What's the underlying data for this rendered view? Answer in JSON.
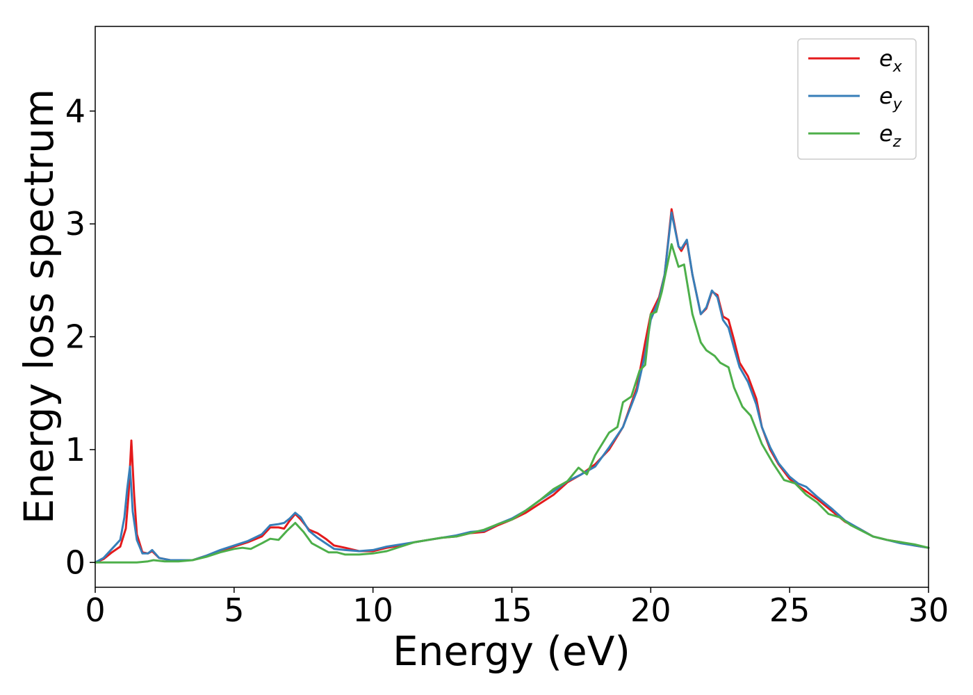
{
  "chart_data": {
    "type": "line",
    "title": "",
    "xlabel": "Energy (eV)",
    "ylabel": "Energy loss spectrum",
    "xlim": [
      0,
      30
    ],
    "ylim": [
      -0.22,
      4.75
    ],
    "xticks": [
      0,
      5,
      10,
      15,
      20,
      25,
      30
    ],
    "yticks": [
      0,
      1,
      2,
      3,
      4
    ],
    "grid": false,
    "legend_position": "top-right",
    "series": [
      {
        "name": "x",
        "legend_base": "e",
        "legend_sub": "x",
        "color": "#e41a1c",
        "points": [
          [
            0,
            0
          ],
          [
            0.3,
            0.03
          ],
          [
            0.6,
            0.09
          ],
          [
            0.9,
            0.14
          ],
          [
            1.1,
            0.3
          ],
          [
            1.2,
            0.6
          ],
          [
            1.3,
            1.08
          ],
          [
            1.4,
            0.6
          ],
          [
            1.5,
            0.25
          ],
          [
            1.7,
            0.09
          ],
          [
            1.9,
            0.08
          ],
          [
            2.05,
            0.1
          ],
          [
            2.3,
            0.04
          ],
          [
            2.7,
            0.02
          ],
          [
            3.0,
            0.02
          ],
          [
            3.5,
            0.02
          ],
          [
            4.0,
            0.06
          ],
          [
            4.5,
            0.1
          ],
          [
            5.0,
            0.14
          ],
          [
            5.5,
            0.18
          ],
          [
            6.0,
            0.23
          ],
          [
            6.3,
            0.31
          ],
          [
            6.6,
            0.31
          ],
          [
            6.8,
            0.3
          ],
          [
            7.0,
            0.37
          ],
          [
            7.2,
            0.43
          ],
          [
            7.4,
            0.38
          ],
          [
            7.7,
            0.29
          ],
          [
            8.0,
            0.26
          ],
          [
            8.3,
            0.21
          ],
          [
            8.6,
            0.15
          ],
          [
            9.0,
            0.13
          ],
          [
            9.5,
            0.1
          ],
          [
            10.0,
            0.1
          ],
          [
            10.5,
            0.13
          ],
          [
            11.0,
            0.15
          ],
          [
            11.5,
            0.18
          ],
          [
            12.0,
            0.2
          ],
          [
            12.5,
            0.22
          ],
          [
            13.0,
            0.23
          ],
          [
            13.5,
            0.26
          ],
          [
            14.0,
            0.27
          ],
          [
            14.5,
            0.33
          ],
          [
            15.0,
            0.38
          ],
          [
            15.5,
            0.44
          ],
          [
            16.0,
            0.52
          ],
          [
            16.5,
            0.6
          ],
          [
            17.0,
            0.71
          ],
          [
            17.5,
            0.78
          ],
          [
            18.0,
            0.87
          ],
          [
            18.5,
            1.0
          ],
          [
            19.0,
            1.2
          ],
          [
            19.5,
            1.55
          ],
          [
            19.8,
            1.95
          ],
          [
            20.0,
            2.2
          ],
          [
            20.3,
            2.35
          ],
          [
            20.5,
            2.55
          ],
          [
            20.75,
            3.13
          ],
          [
            21.0,
            2.8
          ],
          [
            21.1,
            2.76
          ],
          [
            21.3,
            2.85
          ],
          [
            21.5,
            2.55
          ],
          [
            21.8,
            2.2
          ],
          [
            22.0,
            2.25
          ],
          [
            22.2,
            2.4
          ],
          [
            22.4,
            2.37
          ],
          [
            22.6,
            2.18
          ],
          [
            22.8,
            2.15
          ],
          [
            23.0,
            1.97
          ],
          [
            23.2,
            1.77
          ],
          [
            23.5,
            1.65
          ],
          [
            23.8,
            1.45
          ],
          [
            24.0,
            1.2
          ],
          [
            24.3,
            1.0
          ],
          [
            24.6,
            0.87
          ],
          [
            25.0,
            0.74
          ],
          [
            25.3,
            0.68
          ],
          [
            25.6,
            0.63
          ],
          [
            26.0,
            0.56
          ],
          [
            26.5,
            0.46
          ],
          [
            27.0,
            0.36
          ],
          [
            27.5,
            0.3
          ],
          [
            28.0,
            0.23
          ],
          [
            28.5,
            0.2
          ],
          [
            29.0,
            0.18
          ],
          [
            29.5,
            0.15
          ],
          [
            30.0,
            0.13
          ]
        ]
      },
      {
        "name": "y",
        "legend_base": "e",
        "legend_sub": "y",
        "color": "#377eb8",
        "points": [
          [
            0,
            0
          ],
          [
            0.3,
            0.04
          ],
          [
            0.6,
            0.12
          ],
          [
            0.9,
            0.2
          ],
          [
            1.05,
            0.4
          ],
          [
            1.15,
            0.65
          ],
          [
            1.25,
            0.85
          ],
          [
            1.35,
            0.45
          ],
          [
            1.5,
            0.2
          ],
          [
            1.7,
            0.08
          ],
          [
            1.9,
            0.08
          ],
          [
            2.05,
            0.11
          ],
          [
            2.3,
            0.04
          ],
          [
            2.7,
            0.02
          ],
          [
            3.0,
            0.02
          ],
          [
            3.5,
            0.02
          ],
          [
            4.0,
            0.06
          ],
          [
            4.5,
            0.11
          ],
          [
            5.0,
            0.15
          ],
          [
            5.5,
            0.19
          ],
          [
            6.0,
            0.25
          ],
          [
            6.3,
            0.33
          ],
          [
            6.6,
            0.34
          ],
          [
            6.8,
            0.35
          ],
          [
            7.0,
            0.39
          ],
          [
            7.2,
            0.44
          ],
          [
            7.4,
            0.4
          ],
          [
            7.7,
            0.28
          ],
          [
            8.0,
            0.22
          ],
          [
            8.3,
            0.17
          ],
          [
            8.6,
            0.12
          ],
          [
            9.0,
            0.11
          ],
          [
            9.5,
            0.1
          ],
          [
            10.0,
            0.11
          ],
          [
            10.5,
            0.14
          ],
          [
            11.0,
            0.16
          ],
          [
            11.5,
            0.18
          ],
          [
            12.0,
            0.2
          ],
          [
            12.5,
            0.22
          ],
          [
            13.0,
            0.24
          ],
          [
            13.5,
            0.27
          ],
          [
            14.0,
            0.28
          ],
          [
            14.5,
            0.34
          ],
          [
            15.0,
            0.39
          ],
          [
            15.5,
            0.46
          ],
          [
            16.0,
            0.55
          ],
          [
            16.5,
            0.63
          ],
          [
            17.0,
            0.72
          ],
          [
            17.5,
            0.78
          ],
          [
            18.0,
            0.85
          ],
          [
            18.5,
            1.02
          ],
          [
            19.0,
            1.2
          ],
          [
            19.5,
            1.52
          ],
          [
            19.8,
            1.85
          ],
          [
            20.0,
            2.15
          ],
          [
            20.3,
            2.33
          ],
          [
            20.5,
            2.55
          ],
          [
            20.75,
            3.1
          ],
          [
            21.0,
            2.8
          ],
          [
            21.1,
            2.78
          ],
          [
            21.3,
            2.86
          ],
          [
            21.5,
            2.55
          ],
          [
            21.8,
            2.2
          ],
          [
            22.0,
            2.26
          ],
          [
            22.2,
            2.41
          ],
          [
            22.4,
            2.35
          ],
          [
            22.6,
            2.15
          ],
          [
            22.8,
            2.08
          ],
          [
            23.0,
            1.9
          ],
          [
            23.2,
            1.73
          ],
          [
            23.5,
            1.6
          ],
          [
            23.8,
            1.4
          ],
          [
            24.0,
            1.2
          ],
          [
            24.3,
            1.02
          ],
          [
            24.6,
            0.88
          ],
          [
            25.0,
            0.76
          ],
          [
            25.3,
            0.7
          ],
          [
            25.6,
            0.67
          ],
          [
            26.0,
            0.58
          ],
          [
            26.5,
            0.48
          ],
          [
            27.0,
            0.37
          ],
          [
            27.5,
            0.3
          ],
          [
            28.0,
            0.23
          ],
          [
            28.5,
            0.2
          ],
          [
            29.0,
            0.17
          ],
          [
            29.5,
            0.15
          ],
          [
            30.0,
            0.13
          ]
        ]
      },
      {
        "name": "z",
        "legend_base": "e",
        "legend_sub": "z",
        "color": "#4daf4a",
        "points": [
          [
            0,
            0
          ],
          [
            0.5,
            0
          ],
          [
            1.0,
            0
          ],
          [
            1.5,
            0
          ],
          [
            1.9,
            0.01
          ],
          [
            2.1,
            0.02
          ],
          [
            2.5,
            0.01
          ],
          [
            3.0,
            0.01
          ],
          [
            3.5,
            0.02
          ],
          [
            4.0,
            0.05
          ],
          [
            4.5,
            0.09
          ],
          [
            5.0,
            0.12
          ],
          [
            5.3,
            0.13
          ],
          [
            5.6,
            0.12
          ],
          [
            6.0,
            0.17
          ],
          [
            6.3,
            0.21
          ],
          [
            6.6,
            0.2
          ],
          [
            6.9,
            0.28
          ],
          [
            7.2,
            0.35
          ],
          [
            7.5,
            0.27
          ],
          [
            7.8,
            0.17
          ],
          [
            8.1,
            0.13
          ],
          [
            8.4,
            0.09
          ],
          [
            8.7,
            0.09
          ],
          [
            9.0,
            0.07
          ],
          [
            9.5,
            0.07
          ],
          [
            10.0,
            0.08
          ],
          [
            10.5,
            0.1
          ],
          [
            11.0,
            0.14
          ],
          [
            11.5,
            0.18
          ],
          [
            12.0,
            0.2
          ],
          [
            12.5,
            0.22
          ],
          [
            13.0,
            0.23
          ],
          [
            13.5,
            0.26
          ],
          [
            14.0,
            0.29
          ],
          [
            14.5,
            0.34
          ],
          [
            15.0,
            0.38
          ],
          [
            15.5,
            0.46
          ],
          [
            16.0,
            0.55
          ],
          [
            16.5,
            0.65
          ],
          [
            17.0,
            0.72
          ],
          [
            17.4,
            0.84
          ],
          [
            17.7,
            0.78
          ],
          [
            18.0,
            0.95
          ],
          [
            18.5,
            1.15
          ],
          [
            18.8,
            1.2
          ],
          [
            19.0,
            1.42
          ],
          [
            19.3,
            1.47
          ],
          [
            19.6,
            1.7
          ],
          [
            19.8,
            1.75
          ],
          [
            20.0,
            2.2
          ],
          [
            20.2,
            2.22
          ],
          [
            20.4,
            2.4
          ],
          [
            20.75,
            2.82
          ],
          [
            21.0,
            2.62
          ],
          [
            21.2,
            2.64
          ],
          [
            21.5,
            2.2
          ],
          [
            21.8,
            1.95
          ],
          [
            22.0,
            1.88
          ],
          [
            22.3,
            1.83
          ],
          [
            22.5,
            1.77
          ],
          [
            22.8,
            1.73
          ],
          [
            23.0,
            1.55
          ],
          [
            23.3,
            1.38
          ],
          [
            23.6,
            1.3
          ],
          [
            24.0,
            1.05
          ],
          [
            24.4,
            0.88
          ],
          [
            24.8,
            0.73
          ],
          [
            25.2,
            0.7
          ],
          [
            25.6,
            0.6
          ],
          [
            26.0,
            0.53
          ],
          [
            26.4,
            0.43
          ],
          [
            26.8,
            0.4
          ],
          [
            27.2,
            0.33
          ],
          [
            27.6,
            0.28
          ],
          [
            28.0,
            0.23
          ],
          [
            28.5,
            0.2
          ],
          [
            29.0,
            0.18
          ],
          [
            29.5,
            0.16
          ],
          [
            30.0,
            0.13
          ]
        ]
      }
    ]
  }
}
